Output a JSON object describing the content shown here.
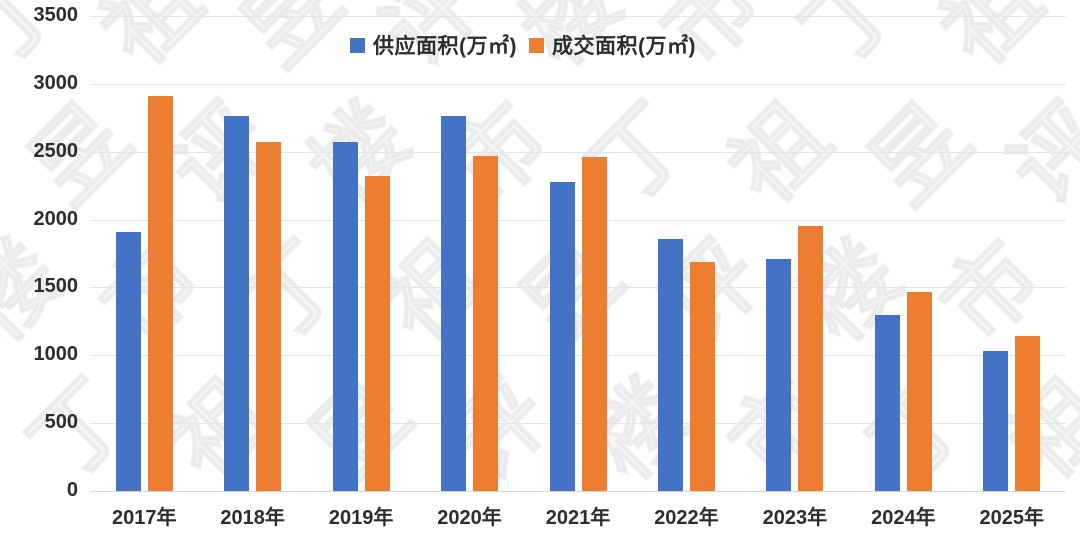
{
  "chart_data": {
    "type": "bar",
    "title": "",
    "categories": [
      "2017年",
      "2018年",
      "2019年",
      "2020年",
      "2021年",
      "2022年",
      "2023年",
      "2024年",
      "2025年"
    ],
    "series": [
      {
        "name": "供应面积(万㎡)",
        "color": "#4472C4",
        "values": [
          1910,
          2760,
          2570,
          2760,
          2280,
          1860,
          1710,
          1300,
          1030
        ]
      },
      {
        "name": "成交面积(万㎡)",
        "color": "#ED7D31",
        "values": [
          2910,
          2570,
          2320,
          2470,
          2460,
          1690,
          1950,
          1470,
          1140
        ]
      }
    ],
    "xlabel": "",
    "ylabel": "",
    "ylim": [
      0,
      3500
    ],
    "yticks": [
      0,
      500,
      1000,
      1500,
      2000,
      2500,
      3000,
      3500
    ],
    "grid": true,
    "legend_position": "top-center",
    "axis_text_color": "#2d2d2d",
    "gridline_color": "#e4e4e4",
    "background_color": "#ffffff"
  },
  "watermark": {
    "text": "丁祖昱评楼市",
    "chars": [
      "丁",
      "祖",
      "昱",
      "评",
      "楼",
      "市"
    ]
  }
}
